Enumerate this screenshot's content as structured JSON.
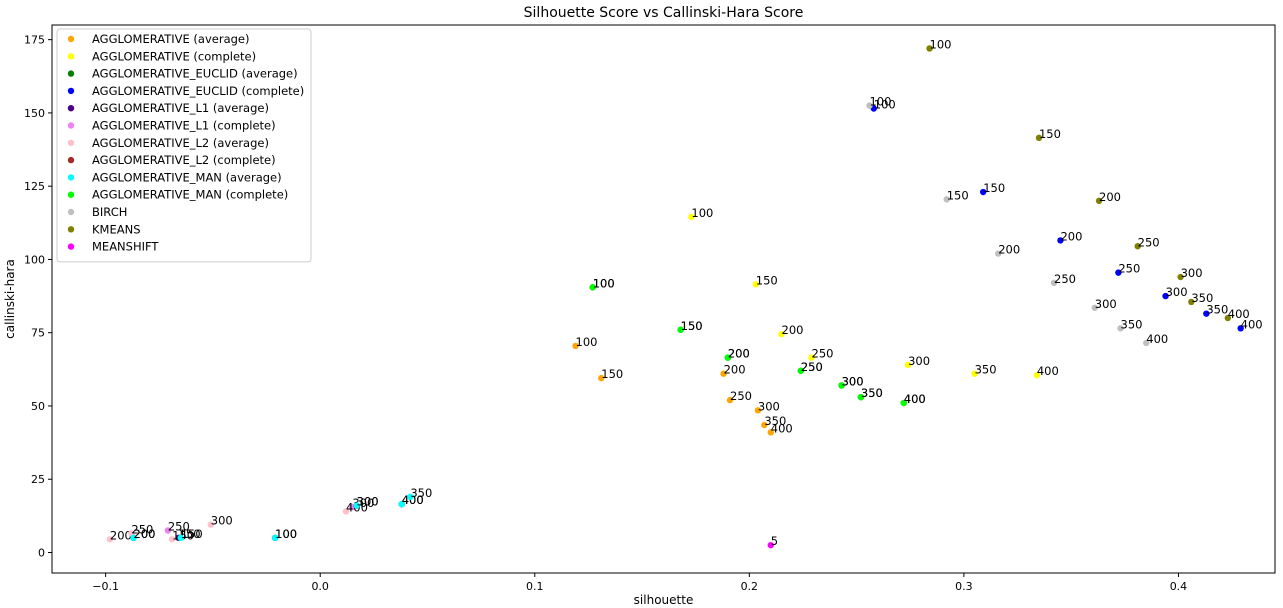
{
  "chart_data": {
    "type": "scatter",
    "title": "Silhouette Score vs Callinski-Hara Score",
    "xlabel": "silhouette",
    "ylabel": "callinski-hara",
    "xlim": [
      -0.125,
      0.445
    ],
    "ylim": [
      -7,
      180
    ],
    "xticks": [
      -0.1,
      0.0,
      0.1,
      0.2,
      0.3,
      0.4
    ],
    "xtick_labels": [
      "−0.1",
      "0.0",
      "0.1",
      "0.2",
      "0.3",
      "0.4"
    ],
    "yticks": [
      0,
      25,
      50,
      75,
      100,
      125,
      150,
      175
    ],
    "ytick_labels": [
      "0",
      "25",
      "50",
      "75",
      "100",
      "125",
      "150",
      "175"
    ],
    "grid": false,
    "legend_position": "top-left",
    "series": [
      {
        "name": "AGGLOMERATIVE (average)",
        "color": "#ffa500",
        "points": [
          {
            "x": 0.119,
            "y": 70.5,
            "label": "100"
          },
          {
            "x": 0.131,
            "y": 59.5,
            "label": "150"
          },
          {
            "x": 0.188,
            "y": 61.0,
            "label": "200"
          },
          {
            "x": 0.191,
            "y": 52.0,
            "label": "250"
          },
          {
            "x": 0.204,
            "y": 48.5,
            "label": "300"
          },
          {
            "x": 0.207,
            "y": 43.5,
            "label": "350"
          },
          {
            "x": 0.21,
            "y": 41.0,
            "label": "400"
          }
        ]
      },
      {
        "name": "AGGLOMERATIVE (complete)",
        "color": "#ffff00",
        "points": [
          {
            "x": 0.173,
            "y": 114.5,
            "label": "100"
          },
          {
            "x": 0.203,
            "y": 91.5,
            "label": "150"
          },
          {
            "x": 0.215,
            "y": 74.5,
            "label": "200"
          },
          {
            "x": 0.229,
            "y": 66.5,
            "label": "250"
          },
          {
            "x": 0.274,
            "y": 64.0,
            "label": "300"
          },
          {
            "x": 0.305,
            "y": 61.0,
            "label": "350"
          },
          {
            "x": 0.334,
            "y": 60.5,
            "label": "400"
          }
        ]
      },
      {
        "name": "AGGLOMERATIVE_EUCLID (average)",
        "color": "#008000",
        "points": [
          {
            "x": 0.127,
            "y": 90.5,
            "label": "100"
          },
          {
            "x": 0.168,
            "y": 76.0,
            "label": "150"
          },
          {
            "x": 0.19,
            "y": 66.5,
            "label": "200"
          },
          {
            "x": 0.224,
            "y": 62.0,
            "label": "250"
          },
          {
            "x": 0.243,
            "y": 57.0,
            "label": "300"
          },
          {
            "x": 0.252,
            "y": 53.0,
            "label": "350"
          },
          {
            "x": 0.272,
            "y": 51.0,
            "label": "400"
          }
        ]
      },
      {
        "name": "AGGLOMERATIVE_EUCLID (complete)",
        "color": "#0000ff",
        "points": [
          {
            "x": 0.258,
            "y": 151.5,
            "label": "100"
          },
          {
            "x": 0.309,
            "y": 123.0,
            "label": "150"
          },
          {
            "x": 0.345,
            "y": 106.5,
            "label": "200"
          },
          {
            "x": 0.372,
            "y": 95.5,
            "label": "250"
          },
          {
            "x": 0.394,
            "y": 87.5,
            "label": "300"
          },
          {
            "x": 0.413,
            "y": 81.5,
            "label": "350"
          },
          {
            "x": 0.429,
            "y": 76.5,
            "label": "400"
          }
        ]
      },
      {
        "name": "AGGLOMERATIVE_L1 (average)",
        "color": "#4b0082",
        "points": [
          {
            "x": -0.087,
            "y": 5.0,
            "label": "200"
          },
          {
            "x": -0.066,
            "y": 5.0,
            "label": "150"
          },
          {
            "x": -0.021,
            "y": 5.0,
            "label": "100"
          },
          {
            "x": 0.017,
            "y": 16.0,
            "label": "300"
          },
          {
            "x": 0.038,
            "y": 16.5,
            "label": "400"
          }
        ]
      },
      {
        "name": "AGGLOMERATIVE_L1 (complete)",
        "color": "#ee82ee",
        "points": [
          {
            "x": -0.071,
            "y": 7.5,
            "label": "250"
          },
          {
            "x": 0.015,
            "y": 15.5,
            "label": "300"
          }
        ]
      },
      {
        "name": "AGGLOMERATIVE_L2 (average)",
        "color": "#ffc0cb",
        "points": [
          {
            "x": -0.098,
            "y": 4.5,
            "label": "200"
          },
          {
            "x": -0.088,
            "y": 6.5,
            "label": "250"
          },
          {
            "x": -0.069,
            "y": 4.5,
            "label": "150"
          },
          {
            "x": -0.051,
            "y": 9.5,
            "label": "300"
          },
          {
            "x": 0.012,
            "y": 14.0,
            "label": "400"
          }
        ]
      },
      {
        "name": "AGGLOMERATIVE_L2 (complete)",
        "color": "#a52a2a",
        "points": []
      },
      {
        "name": "AGGLOMERATIVE_MAN (average)",
        "color": "#00ffff",
        "points": [
          {
            "x": -0.087,
            "y": 5.0,
            "label": "200"
          },
          {
            "x": -0.065,
            "y": 5.0,
            "label": "150"
          },
          {
            "x": -0.021,
            "y": 5.0,
            "label": "100"
          },
          {
            "x": 0.017,
            "y": 16.0,
            "label": "300"
          },
          {
            "x": 0.038,
            "y": 16.5,
            "label": "400"
          },
          {
            "x": 0.042,
            "y": 19.0,
            "label": "350"
          }
        ]
      },
      {
        "name": "AGGLOMERATIVE_MAN (complete)",
        "color": "#00ff00",
        "points": [
          {
            "x": 0.127,
            "y": 90.5,
            "label": "100"
          },
          {
            "x": 0.168,
            "y": 76.0,
            "label": "150"
          },
          {
            "x": 0.19,
            "y": 66.5,
            "label": "200"
          },
          {
            "x": 0.224,
            "y": 62.0,
            "label": "250"
          },
          {
            "x": 0.243,
            "y": 57.0,
            "label": "300"
          },
          {
            "x": 0.252,
            "y": 53.0,
            "label": "350"
          },
          {
            "x": 0.272,
            "y": 51.0,
            "label": "400"
          }
        ]
      },
      {
        "name": "BIRCH",
        "color": "#c0c0c0",
        "points": [
          {
            "x": 0.256,
            "y": 152.5,
            "label": "100"
          },
          {
            "x": 0.292,
            "y": 120.5,
            "label": "150"
          },
          {
            "x": 0.316,
            "y": 102.0,
            "label": "200"
          },
          {
            "x": 0.342,
            "y": 92.0,
            "label": "250"
          },
          {
            "x": 0.361,
            "y": 83.5,
            "label": "300"
          },
          {
            "x": 0.373,
            "y": 76.5,
            "label": "350"
          },
          {
            "x": 0.385,
            "y": 71.5,
            "label": "400"
          }
        ]
      },
      {
        "name": "KMEANS",
        "color": "#808000",
        "points": [
          {
            "x": 0.284,
            "y": 172.0,
            "label": "100"
          },
          {
            "x": 0.335,
            "y": 141.5,
            "label": "150"
          },
          {
            "x": 0.363,
            "y": 120.0,
            "label": "200"
          },
          {
            "x": 0.381,
            "y": 104.5,
            "label": "250"
          },
          {
            "x": 0.401,
            "y": 94.0,
            "label": "300"
          },
          {
            "x": 0.406,
            "y": 85.5,
            "label": "350"
          },
          {
            "x": 0.423,
            "y": 80.0,
            "label": "400"
          }
        ]
      },
      {
        "name": "MEANSHIFT",
        "color": "#ff00ff",
        "points": [
          {
            "x": 0.21,
            "y": 2.5,
            "label": "5"
          }
        ]
      }
    ]
  }
}
